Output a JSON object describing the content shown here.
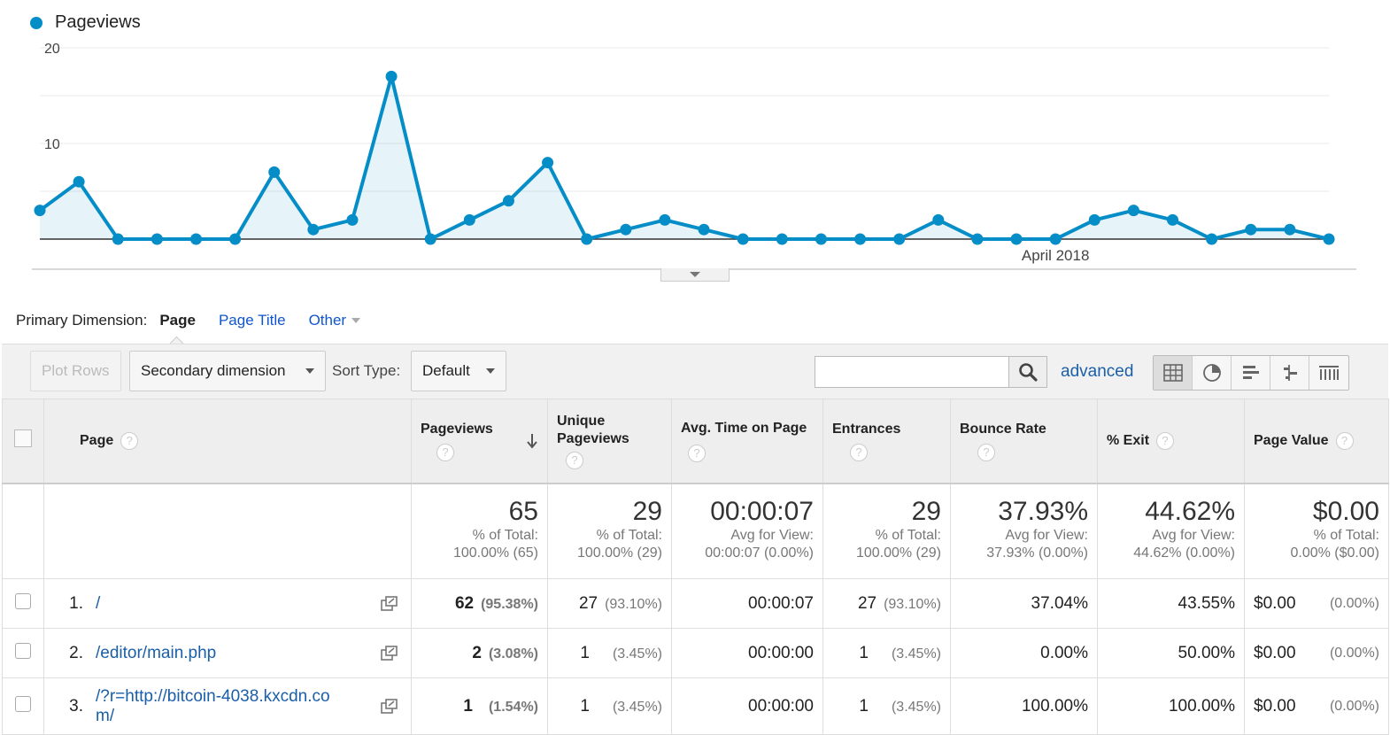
{
  "legend": {
    "series_label": "Pageviews",
    "series_color": "#058dc7"
  },
  "chart_data": {
    "type": "area",
    "series": [
      {
        "name": "Pageviews",
        "values": [
          3,
          6,
          0,
          0,
          0,
          0,
          7,
          1,
          2,
          17,
          0,
          2,
          4,
          8,
          0,
          1,
          2,
          1,
          0,
          0,
          0,
          0,
          0,
          2,
          0,
          0,
          0,
          2,
          3,
          2,
          0,
          1,
          1,
          0
        ]
      }
    ],
    "ylim": [
      0,
      20
    ],
    "y_ticks": [
      "20",
      "10"
    ],
    "x_tick_labels": [
      {
        "index": 26,
        "label": "April 2018"
      }
    ],
    "grid": true
  },
  "primary_dimension": {
    "label": "Primary Dimension:",
    "active": "Page",
    "options": [
      "Page Title"
    ],
    "other": "Other"
  },
  "toolbar": {
    "plot_rows": "Plot Rows",
    "secondary_dimension": "Secondary dimension",
    "sort_type_label": "Sort Type:",
    "sort_type_value": "Default",
    "search_value": "",
    "advanced": "advanced",
    "views": [
      "data-table-icon",
      "pie-chart-icon",
      "bar-chart-icon",
      "comparison-icon",
      "term-cloud-icon"
    ]
  },
  "table": {
    "headers": {
      "page": "Page",
      "pageviews": "Pageviews",
      "unique_pageviews": "Unique Pageviews",
      "avg_time": "Avg. Time on Page",
      "entrances": "Entrances",
      "bounce_rate": "Bounce Rate",
      "exit": "% Exit",
      "page_value": "Page Value"
    },
    "totals": {
      "pageviews": {
        "value": "65",
        "sub1": "% of Total:",
        "sub2": "100.00% (65)"
      },
      "unique_pageviews": {
        "value": "29",
        "sub1": "% of Total:",
        "sub2": "100.00% (29)"
      },
      "avg_time": {
        "value": "00:00:07",
        "sub1": "Avg for View:",
        "sub2": "00:00:07 (0.00%)"
      },
      "entrances": {
        "value": "29",
        "sub1": "% of Total:",
        "sub2": "100.00% (29)"
      },
      "bounce_rate": {
        "value": "37.93%",
        "sub1": "Avg for View:",
        "sub2": "37.93% (0.00%)"
      },
      "exit": {
        "value": "44.62%",
        "sub1": "Avg for View:",
        "sub2": "44.62% (0.00%)"
      },
      "page_value": {
        "value": "$0.00",
        "sub1": "% of Total:",
        "sub2": "0.00% ($0.00)"
      }
    },
    "rows": [
      {
        "index": "1.",
        "page": "/",
        "pageviews": "62",
        "pageviews_pct": "(95.38%)",
        "unique": "27",
        "unique_pct": "(93.10%)",
        "avg_time": "00:00:07",
        "entrances": "27",
        "entrances_pct": "(93.10%)",
        "bounce": "37.04%",
        "exit": "43.55%",
        "value": "$0.00",
        "value_pct": "(0.00%)"
      },
      {
        "index": "2.",
        "page": "/editor/main.php",
        "pageviews": "2",
        "pageviews_pct": "(3.08%)",
        "unique": "1",
        "unique_pct": "(3.45%)",
        "avg_time": "00:00:00",
        "entrances": "1",
        "entrances_pct": "(3.45%)",
        "bounce": "0.00%",
        "exit": "50.00%",
        "value": "$0.00",
        "value_pct": "(0.00%)"
      },
      {
        "index": "3.",
        "page": "/?r=http://bitcoin-4038.kxcdn.com/",
        "page_line1": "/?r=http://bitcoin-4038.kxcdn.co",
        "page_line2": "m/",
        "pageviews": "1",
        "pageviews_pct": "(1.54%)",
        "unique": "1",
        "unique_pct": "(3.45%)",
        "avg_time": "00:00:00",
        "entrances": "1",
        "entrances_pct": "(3.45%)",
        "bounce": "100.00%",
        "exit": "100.00%",
        "value": "$0.00",
        "value_pct": "(0.00%)"
      }
    ]
  }
}
